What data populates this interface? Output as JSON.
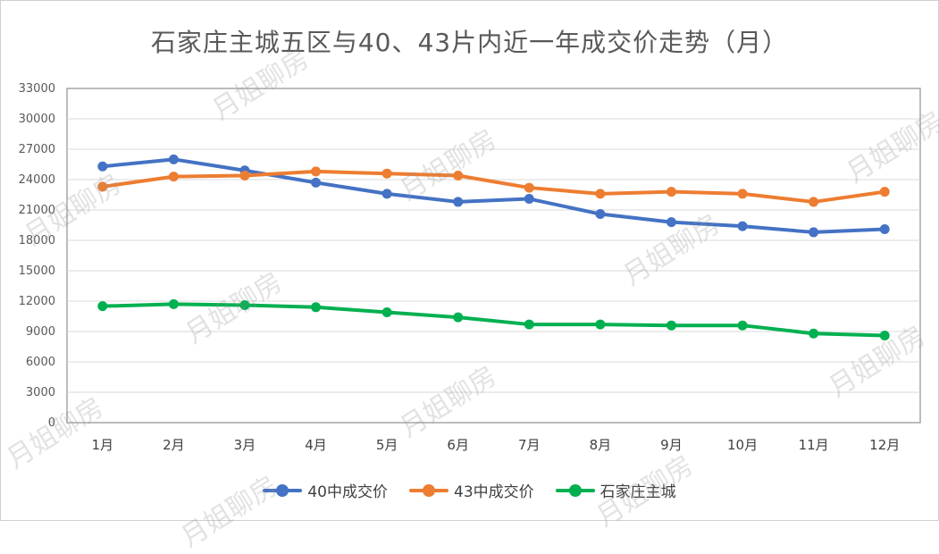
{
  "chart_data": {
    "type": "line",
    "title": "石家庄主城五区与40、43片内近一年成交价走势（月）",
    "categories": [
      "1月",
      "2月",
      "3月",
      "4月",
      "5月",
      "6月",
      "7月",
      "8月",
      "9月",
      "10月",
      "11月",
      "12月"
    ],
    "ylim": [
      0,
      33000
    ],
    "yticks": [
      0,
      3000,
      6000,
      9000,
      12000,
      15000,
      18000,
      21000,
      24000,
      27000,
      30000,
      33000
    ],
    "grid": true,
    "legend_position": "bottom",
    "series": [
      {
        "name": "40中成交价",
        "color": "#4472C4",
        "values": [
          25300,
          26000,
          24900,
          23700,
          22600,
          21800,
          22100,
          20600,
          19800,
          19400,
          18800,
          19100
        ]
      },
      {
        "name": "43中成交价",
        "color": "#ED7D31",
        "values": [
          23300,
          24300,
          24400,
          24800,
          24600,
          24400,
          23200,
          22600,
          22800,
          22600,
          21800,
          22800
        ]
      },
      {
        "name": "石家庄主城",
        "color": "#00B050",
        "values": [
          11500,
          11700,
          11600,
          11400,
          10900,
          10400,
          9700,
          9700,
          9600,
          9600,
          8800,
          8600
        ]
      }
    ]
  },
  "watermark": "月姐聊房"
}
